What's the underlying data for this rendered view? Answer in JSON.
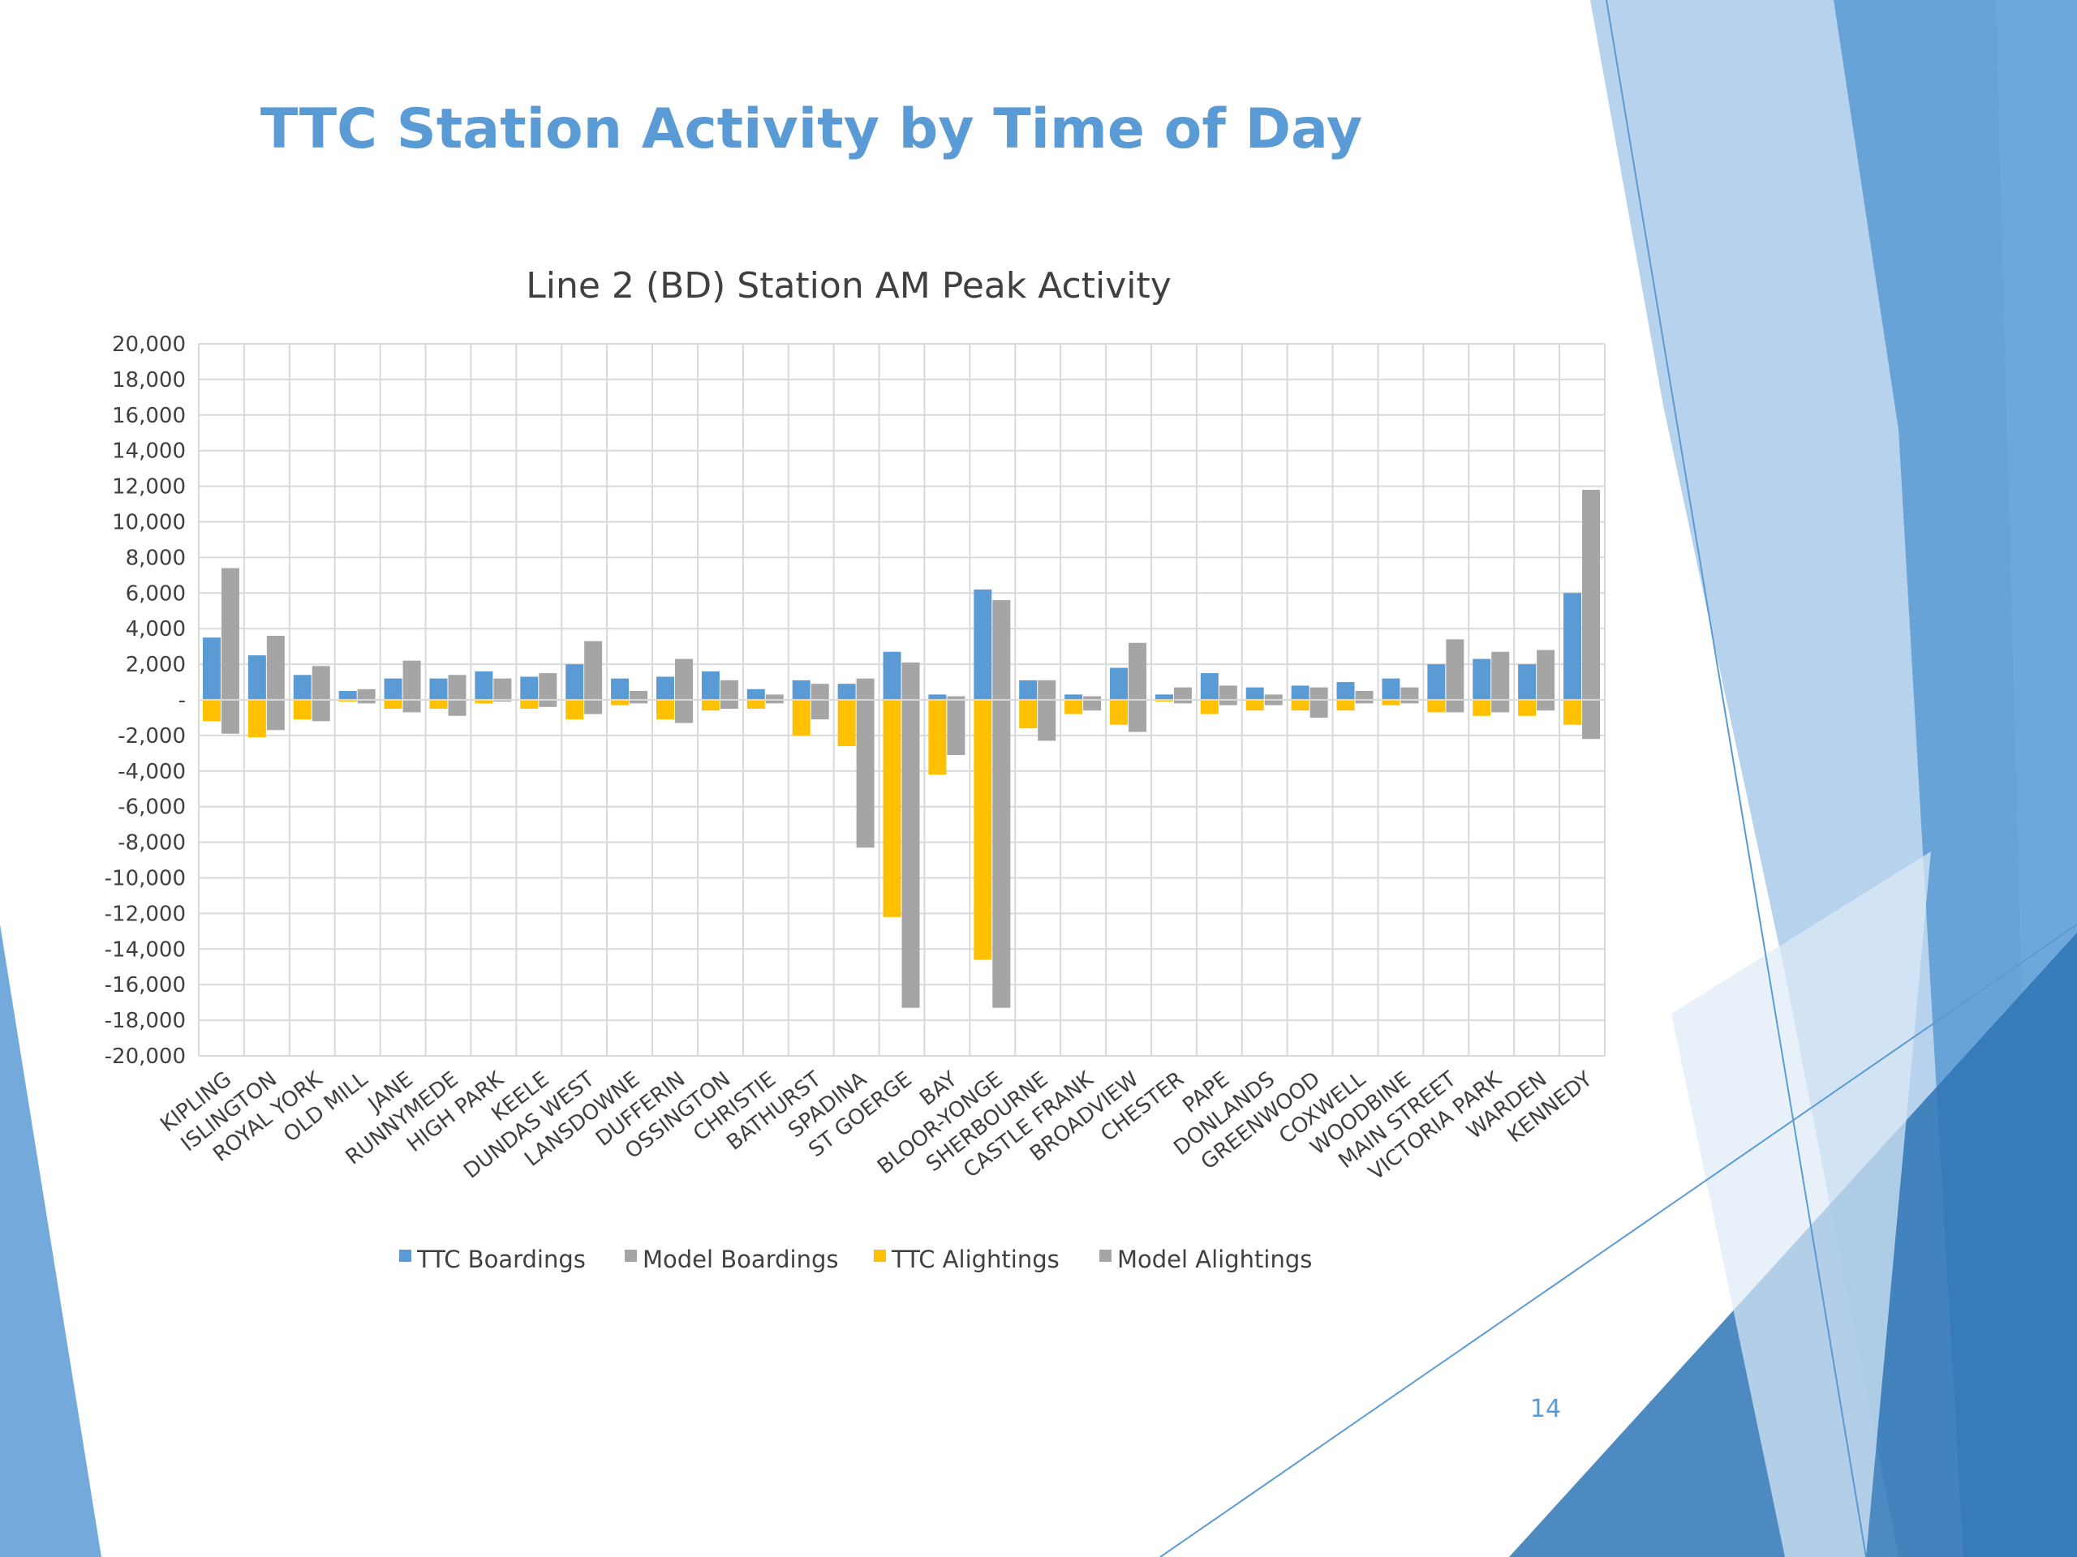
{
  "slide": {
    "title": "TTC Station Activity by Time of Day",
    "page_number": "14",
    "colors": {
      "title": "#5B9BD5",
      "accent_light": "#9DC3E6",
      "accent_mid": "#5B9BD5",
      "accent_dark": "#2E75B6"
    }
  },
  "chart_data": {
    "type": "bar",
    "title": "Line 2 (BD) Station AM Peak Activity",
    "xlabel": "",
    "ylabel": "",
    "ylim": [
      -20000,
      20000
    ],
    "ytick_step": 2000,
    "ytick_labels": [
      "20,000",
      "18,000",
      "16,000",
      "14,000",
      "12,000",
      "10,000",
      "8,000",
      "6,000",
      "4,000",
      "2,000",
      "-",
      "-2,000",
      "-4,000",
      "-6,000",
      "-8,000",
      "-10,000",
      "-12,000",
      "-14,000",
      "-16,000",
      "-18,000",
      "-20,000"
    ],
    "grid": true,
    "legend_position": "bottom",
    "categories": [
      "KIPLING",
      "ISLINGTON",
      "ROYAL YORK",
      "OLD MILL",
      "JANE",
      "RUNNYMEDE",
      "HIGH PARK",
      "KEELE",
      "DUNDAS WEST",
      "LANSDOWNE",
      "DUFFERIN",
      "OSSINGTON",
      "CHRISTIE",
      "BATHURST",
      "SPADINA",
      "ST GOERGE",
      "BAY",
      "BLOOR-YONGE",
      "SHERBOURNE",
      "CASTLE FRANK",
      "BROADVIEW",
      "CHESTER",
      "PAPE",
      "DONLANDS",
      "GREENWOOD",
      "COXWELL",
      "WOODBINE",
      "MAIN STREET",
      "VICTORIA PARK",
      "WARDEN",
      "KENNEDY"
    ],
    "series": [
      {
        "name": "TTC Boardings",
        "color": "#5B9BD5",
        "values": [
          3500,
          2500,
          1400,
          500,
          1200,
          1200,
          1600,
          1300,
          2000,
          1200,
          1300,
          1600,
          600,
          1100,
          900,
          2700,
          300,
          6200,
          1100,
          300,
          1800,
          300,
          1500,
          700,
          800,
          1000,
          1200,
          2000,
          2300,
          2000,
          6000
        ]
      },
      {
        "name": "TTC Alightings",
        "color": "#FFC000",
        "values": [
          -1200,
          -2100,
          -1100,
          -100,
          -500,
          -500,
          -200,
          -500,
          -1100,
          -300,
          -1100,
          -600,
          -500,
          -2000,
          -2600,
          -12200,
          -4200,
          -14600,
          -1600,
          -800,
          -1400,
          -100,
          -800,
          -600,
          -600,
          -600,
          -300,
          -700,
          -900,
          -900,
          -1400
        ]
      },
      {
        "name": "Model Boardings",
        "color": "#A5A5A5",
        "values": [
          7400,
          3600,
          1900,
          600,
          2200,
          1400,
          1200,
          1500,
          3300,
          500,
          2300,
          1100,
          300,
          900,
          1200,
          2100,
          200,
          5600,
          1100,
          200,
          3200,
          700,
          800,
          300,
          700,
          500,
          700,
          3400,
          2700,
          2800,
          11800
        ]
      },
      {
        "name": "Model Alightings",
        "color": "#A5A5A5",
        "values": [
          -1900,
          -1700,
          -1200,
          -200,
          -700,
          -900,
          -100,
          -400,
          -800,
          -200,
          -1300,
          -500,
          -200,
          -1100,
          -8300,
          -17300,
          -3100,
          -17300,
          -2300,
          -600,
          -1800,
          -200,
          -300,
          -300,
          -1000,
          -200,
          -200,
          -700,
          -700,
          -600,
          -2200
        ]
      }
    ],
    "legend": [
      "TTC Boardings",
      "Model Boardings",
      "TTC Alightings",
      "Model Alightings"
    ]
  }
}
